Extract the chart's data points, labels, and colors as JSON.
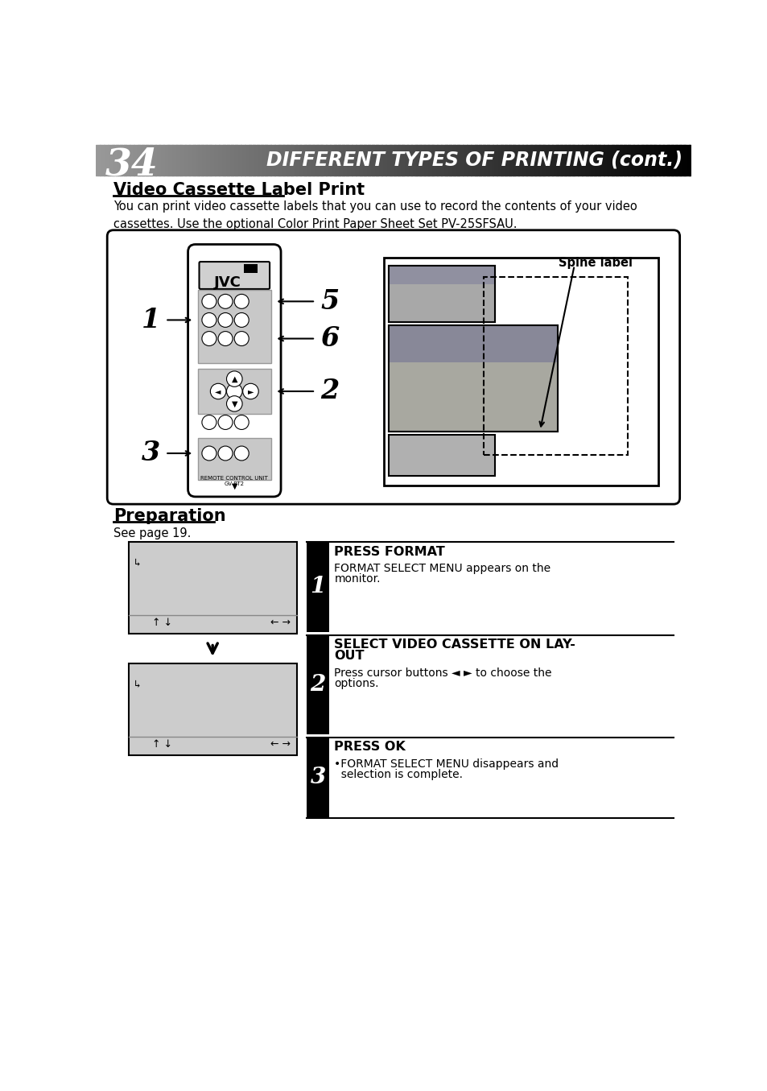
{
  "page_number": "34",
  "header_title": "DIFFERENT TYPES OF PRINTING (cont.)",
  "section_title": "Video Cassette Label Print",
  "intro_text": "You can print video cassette labels that you can use to record the contents of your video\ncassettes. Use the optional Color Print Paper Sheet Set PV-25SFSAU.",
  "preparation_title": "Preparation",
  "preparation_sub": "See page 19.",
  "steps": [
    {
      "num": "1",
      "title": "PRESS FORMAT",
      "body": "FORMAT SELECT MENU appears on the\nmonitor."
    },
    {
      "num": "2",
      "title": "SELECT VIDEO CASSETTE ON LAY-\nOUT",
      "body": "Press cursor buttons ◄ ► to choose the\noptions."
    },
    {
      "num": "3",
      "title": "PRESS OK",
      "body": "•FORMAT SELECT MENU disappears and\n  selection is complete."
    }
  ],
  "spine_label_text": "Spine label",
  "bg_color": "#ffffff",
  "header_text_color": "#ffffff",
  "step_num_bg": "#000000",
  "step_num_color": "#ffffff",
  "gray_screen_color": "#cccccc",
  "remote_unit_text1": "REMOTE CONTROL UNIT",
  "remote_unit_text2": "GV-PT2"
}
